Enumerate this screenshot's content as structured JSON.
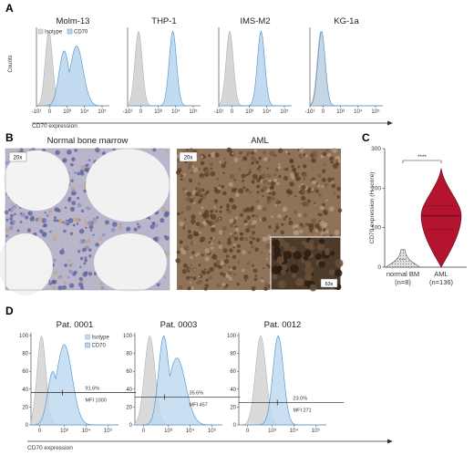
{
  "panels": {
    "a": "A",
    "b": "B",
    "c": "C",
    "d": "D"
  },
  "colors": {
    "isotype_fill": "#d6d6d6",
    "isotype_stroke": "#a8a8a8",
    "cd70_fill": "#bcd7ef",
    "cd70_stroke": "#4a8fd0",
    "aml_violin": "#b5142e",
    "normal_violin": "#cfcfcf"
  },
  "panelA": {
    "y_label": "Counts",
    "x_label": "CD70 expression",
    "x_ticks": [
      "-10¹",
      "0",
      "10³",
      "10⁴",
      "10⁵"
    ],
    "legend": {
      "isotype": "Isotype",
      "cd70": "CD70"
    },
    "cell_lines": [
      "Molm-13",
      "THP-1",
      "IMS-M2",
      "KG-1a"
    ]
  },
  "panelB": {
    "normal": {
      "title": "Normal bone marrow",
      "mag": "20x"
    },
    "aml": {
      "title": "AML",
      "mag": "20x",
      "inset_mag": "63x"
    }
  },
  "panelC": {
    "chart_data": {
      "type": "violin",
      "categories": [
        "normal BM",
        "AML"
      ],
      "counts": [
        "(n=8)",
        "(n=136)"
      ],
      "ylabel": "CD70 expression (H-score)",
      "yticks": [
        "0",
        "100",
        "200",
        "300"
      ],
      "ylim": [
        0,
        300
      ],
      "significance": "****",
      "medians": [
        0,
        130
      ],
      "quartiles": [
        [
          0,
          20
        ],
        [
          95,
          155
        ]
      ],
      "ranges": [
        [
          0,
          45
        ],
        [
          0,
          250
        ]
      ]
    }
  },
  "panelD": {
    "x_label": "CD70 expression",
    "y_ticks": [
      "0",
      "20",
      "40",
      "60",
      "80",
      "100"
    ],
    "x_ticks": [
      "0",
      "10³",
      "10⁴",
      "10⁵"
    ],
    "legend": {
      "isotype": "Isotype",
      "cd70": "CD70"
    },
    "patients": [
      {
        "title": "Pat. 0001",
        "pct": "91.6%",
        "mfi": "MFI 1000"
      },
      {
        "title": "Pat. 0003",
        "pct": "35.6%",
        "mfi": "MFI 457"
      },
      {
        "title": "Pat. 0012",
        "pct": "23.0%",
        "mfi": "MFI 271"
      }
    ]
  }
}
